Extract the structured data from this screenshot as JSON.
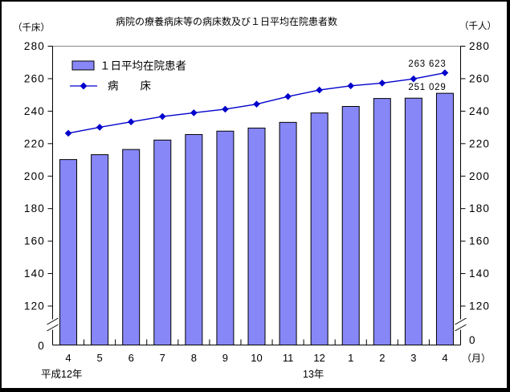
{
  "header": {
    "title": "病院の療養病床等の病床数及び１日平均在院患者数",
    "left_unit": "（千床）",
    "right_unit": "（千人）"
  },
  "legend": {
    "bar_label": "１日平均在院患者",
    "line_label": "病　　床"
  },
  "x_axis": {
    "unit": "（月）",
    "era_left": "平成12年",
    "era_right": "13年"
  },
  "colors": {
    "bar_fill": "#8787f8",
    "bar_stroke": "#000000",
    "line": "#0000cc",
    "axis": "#000000",
    "plot_top_border": "#888888"
  },
  "chart_data": {
    "type": "bar",
    "title": "病院の療養病床等の病床数及び１日平均在院患者数",
    "categories": [
      "4",
      "5",
      "6",
      "7",
      "8",
      "9",
      "10",
      "11",
      "12",
      "1",
      "2",
      "3",
      "4"
    ],
    "x_unit": "（月）",
    "x_era_labels": [
      "平成12年",
      "13年"
    ],
    "ylim": [
      0,
      280
    ],
    "y_ticks": [
      0,
      120,
      140,
      160,
      180,
      200,
      220,
      240,
      260,
      280
    ],
    "y_break_between": [
      0,
      120
    ],
    "grid": false,
    "legend_position": "top-left-inside",
    "series": [
      {
        "name": "１日平均在院患者",
        "type": "bar",
        "unit": "千人",
        "values": [
          210.2,
          213.2,
          216.4,
          222.2,
          225.6,
          227.7,
          229.6,
          233.1,
          238.9,
          242.9,
          247.8,
          248.0,
          251.0
        ],
        "final_value_label": "251 029"
      },
      {
        "name": "病床",
        "type": "line",
        "unit": "千床",
        "values": [
          226.4,
          230.1,
          233.4,
          236.7,
          239.0,
          241.2,
          244.3,
          249.0,
          253.0,
          255.6,
          257.3,
          259.9,
          263.6
        ],
        "final_value_label": "263 623"
      }
    ]
  }
}
